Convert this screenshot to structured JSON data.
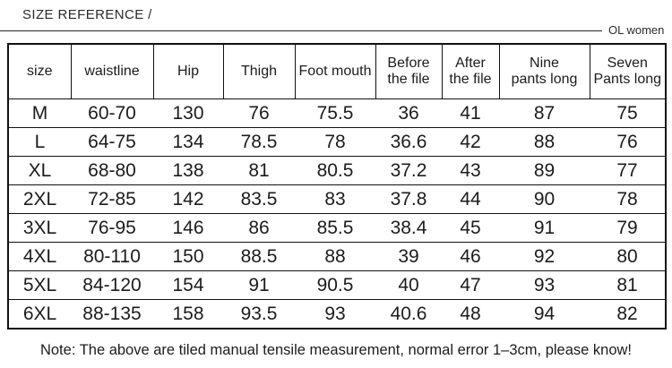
{
  "header": {
    "title": "SIZE REFERENCE /",
    "brand": "OL women"
  },
  "table": {
    "columns": [
      "size",
      "waistline",
      "Hip",
      "Thigh",
      "Foot mouth",
      "Before\nthe file",
      "After\nthe file",
      "Nine\npants long",
      "Seven\nPants long"
    ],
    "rows": [
      [
        "M",
        "60-70",
        "130",
        "76",
        "75.5",
        "36",
        "41",
        "87",
        "75"
      ],
      [
        "L",
        "64-75",
        "134",
        "78.5",
        "78",
        "36.6",
        "42",
        "88",
        "76"
      ],
      [
        "XL",
        "68-80",
        "138",
        "81",
        "80.5",
        "37.2",
        "43",
        "89",
        "77"
      ],
      [
        "2XL",
        "72-85",
        "142",
        "83.5",
        "83",
        "37.8",
        "44",
        "90",
        "78"
      ],
      [
        "3XL",
        "76-95",
        "146",
        "86",
        "85.5",
        "38.4",
        "45",
        "91",
        "79"
      ],
      [
        "4XL",
        "80-110",
        "150",
        "88.5",
        "88",
        "39",
        "46",
        "92",
        "80"
      ],
      [
        "5XL",
        "84-120",
        "154",
        "91",
        "90.5",
        "40",
        "47",
        "93",
        "81"
      ],
      [
        "6XL",
        "88-135",
        "158",
        "93.5",
        "93",
        "40.6",
        "48",
        "94",
        "82"
      ]
    ]
  },
  "footer": {
    "note": "Note: The above are tiled manual tensile measurement, normal error 1–3cm, please know!"
  }
}
